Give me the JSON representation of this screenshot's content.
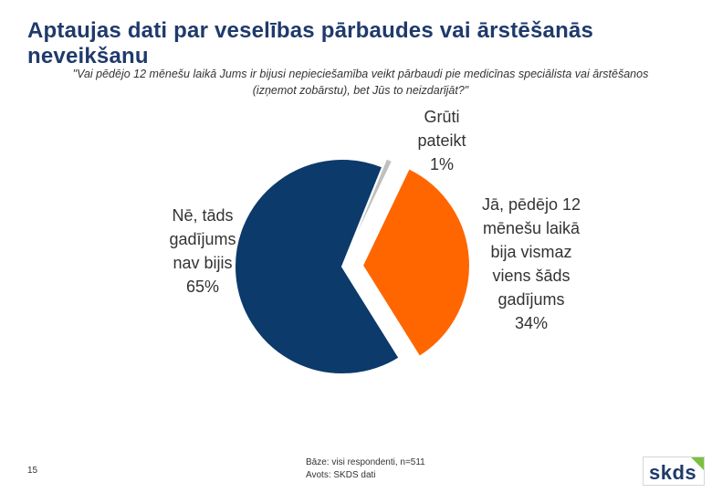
{
  "header": {
    "title": "Aptaujas dati par veselības pārbaudes vai ārstēšanās neveikšanu",
    "question": "\"Vai pēdējo 12 mēnešu laikā Jums ir bijusi nepieciešamība veikt pārbaudi pie medicīnas speciālista vai ārstēšanos (izņemot zobārstu), bet Jūs to neizdarījāt?\""
  },
  "chart_data": {
    "type": "pie",
    "title": "Aptaujas dati par veselības pārbaudes vai ārstēšanās neveikšanu",
    "slices": [
      {
        "name": "Grūti pateikt",
        "value": 1,
        "label_lines": [
          "Grūti",
          "pateikt",
          "1%"
        ],
        "color": "#c0c0c0"
      },
      {
        "name": "Jā, pēdējo 12 mēnešu laikā bija vismaz viens šāds gadījums",
        "value": 34,
        "label_lines": [
          "Jā, pēdējo 12",
          "mēnešu laikā",
          "bija vismaz",
          "viens šāds",
          "gadījums",
          "34%"
        ],
        "color": "#ff6600"
      },
      {
        "name": "Nē, tāds gadījums nav bijis",
        "value": 65,
        "label_lines": [
          "Nē, tāds",
          "gadījums",
          "nav bijis",
          "65%"
        ],
        "color": "#0b3a6b"
      }
    ]
  },
  "footer": {
    "page_number": "15",
    "base": "Bāze: visi respondenti, n=511",
    "source": "Avots: SKDS dati",
    "logo": "skds"
  }
}
